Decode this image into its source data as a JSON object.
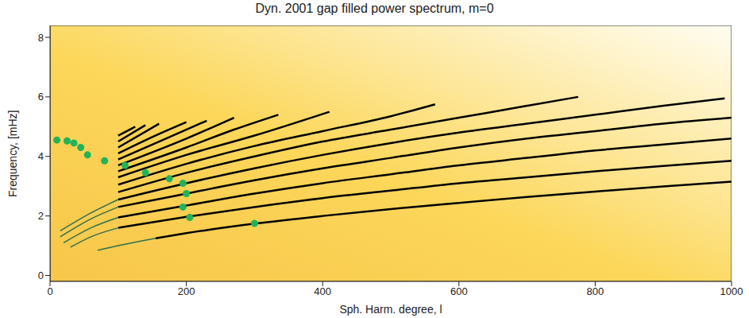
{
  "chart_data": {
    "type": "line",
    "title": "Dyn. 2001 gap filled power spectrum, m=0",
    "x_label": "Sph. Harm. degree, l",
    "y_label": "Frequency, [mHz]",
    "xlim": [
      0,
      1000
    ],
    "xticks": [
      0,
      200,
      400,
      600,
      800,
      1000
    ],
    "ylim": [
      -0.2,
      8.4
    ],
    "yticks": [
      0,
      2,
      4,
      6,
      8
    ],
    "grid": false,
    "series": [
      {
        "color": "#000000",
        "x": [
          155,
          200,
          300,
          400,
          500,
          600,
          700,
          800,
          900,
          1000
        ],
        "values": [
          1.25,
          1.42,
          1.74,
          2.0,
          2.23,
          2.44,
          2.64,
          2.82,
          2.99,
          3.15
        ]
      },
      {
        "color": "#000000",
        "x": [
          100,
          200,
          300,
          400,
          500,
          600,
          700,
          800,
          900,
          1000
        ],
        "values": [
          1.6,
          1.97,
          2.3,
          2.6,
          2.85,
          3.1,
          3.3,
          3.5,
          3.68,
          3.85
        ]
      },
      {
        "color": "#000000",
        "x": [
          100,
          200,
          300,
          400,
          500,
          600,
          700,
          800,
          900,
          1000
        ],
        "values": [
          1.95,
          2.35,
          2.75,
          3.1,
          3.4,
          3.7,
          3.95,
          4.2,
          4.4,
          4.6
        ]
      },
      {
        "color": "#000000",
        "x": [
          100,
          200,
          300,
          400,
          500,
          600,
          700,
          800,
          900,
          1000
        ],
        "values": [
          2.3,
          2.75,
          3.2,
          3.6,
          3.95,
          4.3,
          4.6,
          4.85,
          5.1,
          5.3
        ]
      },
      {
        "color": "#000000",
        "x": [
          100,
          200,
          300,
          400,
          500,
          600,
          700,
          800,
          900,
          990
        ],
        "values": [
          2.55,
          3.1,
          3.6,
          4.05,
          4.45,
          4.8,
          5.1,
          5.4,
          5.7,
          5.95
        ]
      },
      {
        "color": "#000000",
        "x": [
          100,
          200,
          300,
          400,
          500,
          600,
          700,
          775
        ],
        "values": [
          2.8,
          3.45,
          4.0,
          4.5,
          4.9,
          5.3,
          5.7,
          6.0
        ]
      },
      {
        "color": "#000000",
        "x": [
          100,
          200,
          300,
          400,
          500,
          565
        ],
        "values": [
          3.05,
          3.75,
          4.35,
          4.85,
          5.35,
          5.75
        ]
      },
      {
        "color": "#000000",
        "x": [
          100,
          200,
          300,
          410
        ],
        "values": [
          3.3,
          4.05,
          4.7,
          5.5
        ]
      },
      {
        "color": "#000000",
        "x": [
          100,
          200,
          270,
          335
        ],
        "values": [
          3.5,
          4.3,
          4.9,
          5.4
        ]
      },
      {
        "color": "#000000",
        "x": [
          100,
          200,
          270
        ],
        "values": [
          3.7,
          4.6,
          5.3
        ]
      },
      {
        "color": "#000000",
        "x": [
          100,
          170,
          230
        ],
        "values": [
          3.9,
          4.6,
          5.2
        ]
      },
      {
        "color": "#000000",
        "x": [
          100,
          150,
          200
        ],
        "values": [
          4.1,
          4.65,
          5.15
        ]
      },
      {
        "color": "#000000",
        "x": [
          100,
          160
        ],
        "values": [
          4.3,
          5.1
        ]
      },
      {
        "color": "#000000",
        "x": [
          100,
          140
        ],
        "values": [
          4.5,
          5.05
        ]
      },
      {
        "color": "#000000",
        "x": [
          100,
          125
        ],
        "values": [
          4.7,
          5.0
        ]
      },
      {
        "color": "#2f6f4f",
        "x": [
          70,
          110,
          155
        ],
        "values": [
          0.85,
          1.05,
          1.25
        ]
      },
      {
        "color": "#2f6f4f",
        "x": [
          30,
          60,
          100
        ],
        "values": [
          0.95,
          1.3,
          1.6
        ]
      },
      {
        "color": "#2f6f4f",
        "x": [
          20,
          60,
          100
        ],
        "values": [
          1.1,
          1.6,
          1.95
        ]
      },
      {
        "color": "#2f6f4f",
        "x": [
          15,
          60,
          100
        ],
        "values": [
          1.3,
          1.9,
          2.3
        ]
      },
      {
        "color": "#2f6f4f",
        "x": [
          15,
          60,
          100
        ],
        "values": [
          1.5,
          2.1,
          2.55
        ]
      },
      {
        "type": "scatter",
        "marker": "circle",
        "color": "#22b35a",
        "x": [
          10,
          25,
          35,
          45,
          55,
          80,
          110,
          140,
          175,
          195,
          200,
          195,
          205,
          300
        ],
        "values": [
          4.55,
          4.52,
          4.45,
          4.3,
          4.05,
          3.85,
          3.7,
          3.45,
          3.25,
          3.1,
          2.75,
          2.3,
          1.95,
          1.75
        ]
      }
    ]
  }
}
